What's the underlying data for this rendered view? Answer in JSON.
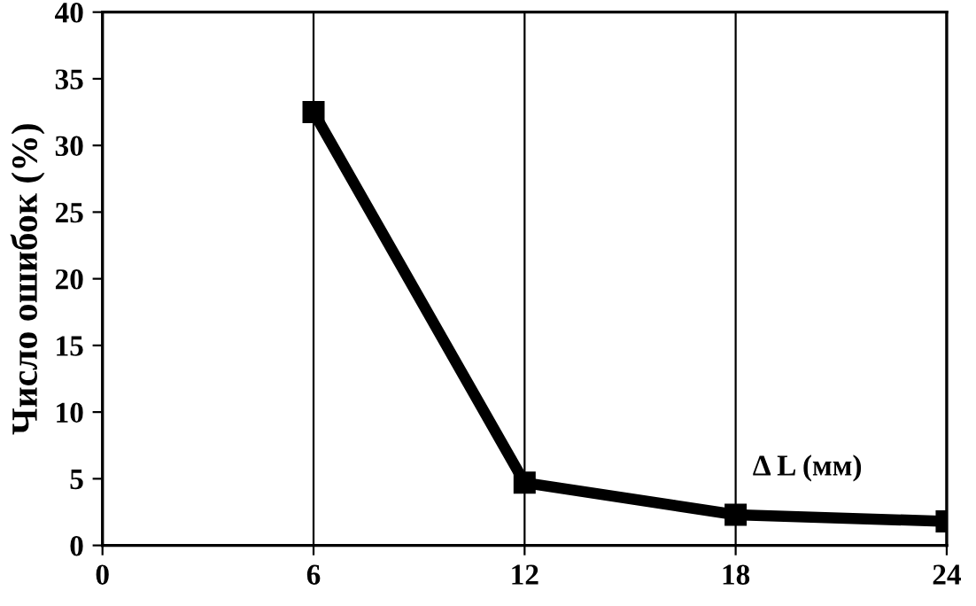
{
  "chart_data": {
    "type": "line",
    "xlabel": "Δ L (мм)",
    "ylabel": "Число ошибок (%)",
    "x": [
      6,
      12,
      18,
      24
    ],
    "series": [
      {
        "color": "#000000",
        "values": [
          32.5,
          4.7,
          2.3,
          1.8
        ]
      }
    ],
    "xlim": [
      0,
      24
    ],
    "xticks": [
      0,
      6,
      12,
      18,
      24
    ],
    "ylim": [
      0,
      40
    ],
    "yticks": [
      0,
      5,
      10,
      15,
      20,
      25,
      30,
      35,
      40
    ],
    "grid": "x",
    "marker": "square",
    "line_style": "solid"
  }
}
